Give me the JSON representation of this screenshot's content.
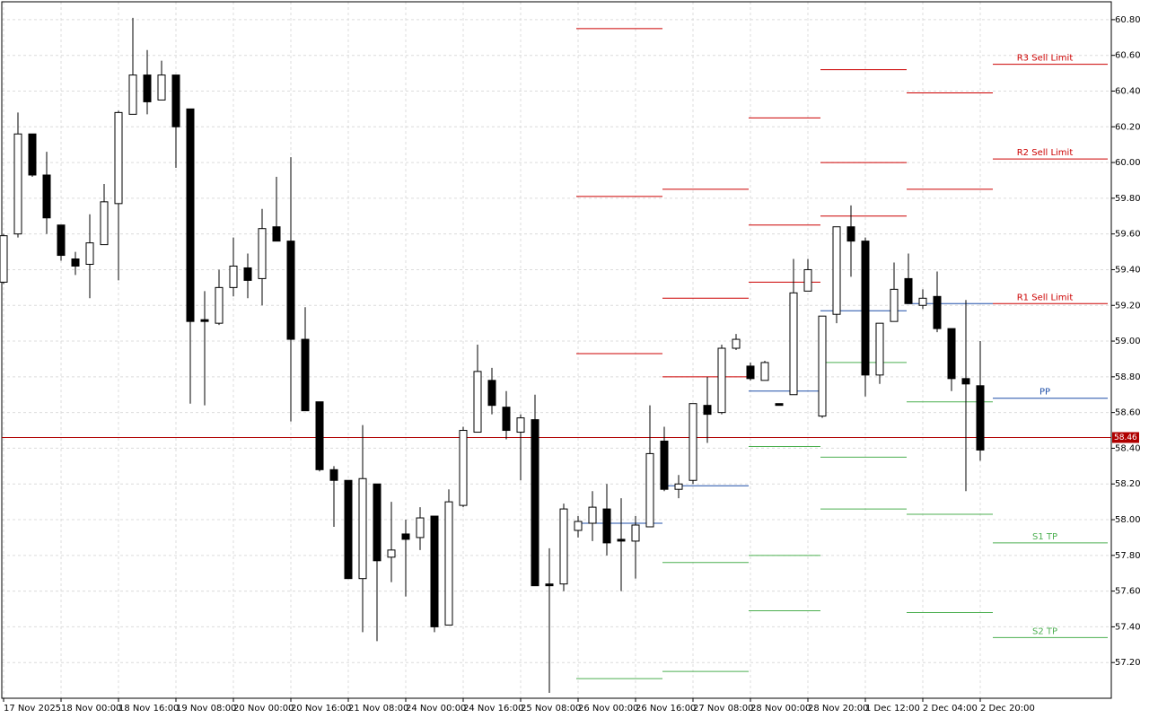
{
  "chart_data": {
    "type": "candlestick",
    "categories": [
      "17 Nov 2025",
      null,
      null,
      null,
      "18 Nov 00:00",
      null,
      null,
      null,
      "18 Nov 16:00",
      null,
      null,
      null,
      "19 Nov 08:00",
      null,
      null,
      null,
      "20 Nov 00:00",
      null,
      null,
      null,
      "20 Nov 16:00",
      null,
      null,
      null,
      "21 Nov 08:00",
      null,
      null,
      null,
      "24 Nov 00:00",
      null,
      null,
      null,
      "24 Nov 16:00",
      null,
      null,
      null,
      "25 Nov 08:00",
      null,
      null,
      null,
      "26 Nov 00:00",
      null,
      null,
      null,
      "26 Nov 16:00",
      null,
      null,
      null,
      "27 Nov 08:00",
      null,
      null,
      null,
      "28 Nov 00:00",
      null,
      null,
      null,
      "28 Nov 20:00",
      null,
      null,
      null,
      "1 Dec 12:00",
      null,
      null,
      null,
      "2 Dec 04:00",
      null,
      null,
      null,
      "2 Dec 20:00"
    ],
    "open": [
      59.33,
      59.6,
      60.16,
      59.93,
      59.65,
      59.46,
      59.43,
      59.54,
      59.77,
      60.27,
      60.49,
      60.35,
      60.49,
      60.3,
      59.12,
      59.1,
      59.3,
      59.41,
      59.35,
      59.64,
      59.56,
      59.01,
      58.66,
      58.28,
      58.22,
      57.67,
      58.2,
      57.79,
      57.92,
      57.9,
      58.02,
      57.41,
      58.08,
      58.49,
      58.78,
      58.63,
      58.49,
      58.56,
      57.64,
      57.64,
      57.94,
      57.98,
      58.06,
      57.89,
      57.88,
      57.96,
      58.44,
      58.17,
      58.22,
      58.64,
      58.6,
      58.96,
      58.86,
      58.78,
      58.65,
      58.7,
      59.28,
      58.58,
      59.15,
      59.64,
      59.56,
      58.81,
      59.11,
      59.35,
      59.2,
      59.25,
      59.07,
      58.79,
      58.75
    ],
    "high": [
      59.6,
      60.28,
      60.16,
      60.06,
      59.65,
      59.5,
      59.71,
      59.88,
      60.29,
      60.81,
      60.63,
      60.57,
      60.49,
      60.3,
      59.28,
      59.4,
      59.58,
      59.49,
      59.74,
      59.92,
      60.03,
      59.19,
      58.66,
      58.3,
      58.22,
      58.53,
      58.2,
      58.1,
      58.0,
      58.07,
      58.02,
      58.17,
      58.52,
      58.98,
      58.85,
      58.72,
      58.59,
      58.7,
      57.84,
      58.09,
      58.02,
      58.16,
      58.2,
      58.12,
      58.02,
      58.64,
      58.52,
      58.25,
      58.65,
      58.8,
      58.98,
      59.04,
      58.88,
      58.89,
      58.65,
      59.46,
      59.46,
      59.14,
      59.64,
      59.76,
      59.58,
      59.1,
      59.44,
      59.49,
      59.29,
      59.39,
      59.07,
      59.23,
      59.0
    ],
    "low": [
      59.32,
      59.58,
      59.92,
      59.6,
      59.45,
      59.37,
      59.24,
      59.54,
      59.34,
      60.27,
      60.27,
      60.35,
      59.97,
      58.65,
      58.64,
      59.09,
      59.25,
      59.24,
      59.2,
      59.56,
      58.55,
      58.61,
      58.27,
      57.96,
      57.67,
      57.37,
      57.32,
      57.65,
      57.57,
      57.83,
      57.37,
      57.41,
      58.07,
      58.49,
      58.59,
      58.45,
      58.22,
      57.63,
      57.03,
      57.6,
      57.9,
      57.88,
      57.8,
      57.6,
      57.67,
      57.96,
      58.16,
      58.12,
      58.2,
      58.43,
      58.59,
      58.95,
      58.78,
      58.78,
      58.64,
      58.7,
      59.28,
      58.57,
      59.1,
      59.36,
      58.69,
      58.76,
      59.11,
      59.21,
      59.18,
      59.05,
      58.72,
      58.16,
      58.33
    ],
    "close": [
      59.59,
      60.16,
      59.93,
      59.69,
      59.48,
      59.42,
      59.55,
      59.78,
      60.28,
      60.49,
      60.34,
      60.49,
      60.2,
      59.11,
      59.11,
      59.3,
      59.42,
      59.34,
      59.63,
      59.56,
      59.01,
      58.61,
      58.28,
      58.22,
      57.67,
      58.23,
      57.77,
      57.83,
      57.89,
      58.01,
      57.4,
      58.1,
      58.5,
      58.83,
      58.64,
      58.5,
      58.57,
      57.63,
      57.63,
      58.06,
      57.99,
      58.07,
      57.87,
      57.88,
      57.97,
      58.37,
      58.17,
      58.2,
      58.65,
      58.59,
      58.96,
      59.01,
      58.79,
      58.88,
      58.64,
      59.27,
      59.4,
      59.14,
      59.64,
      59.56,
      58.81,
      59.1,
      59.29,
      59.21,
      59.24,
      59.07,
      58.79,
      58.76,
      58.39
    ],
    "ylim": [
      57.0,
      60.9
    ],
    "yticks": [
      {
        "value": 57.2,
        "label": "57.20"
      },
      {
        "value": 57.4,
        "label": "57.40"
      },
      {
        "value": 57.6,
        "label": "57.60"
      },
      {
        "value": 57.8,
        "label": "57.80"
      },
      {
        "value": 58.0,
        "label": "58.00"
      },
      {
        "value": 58.2,
        "label": "58.20"
      },
      {
        "value": 58.4,
        "label": "58.40"
      },
      {
        "value": 58.6,
        "label": "58.60"
      },
      {
        "value": 58.8,
        "label": "58.80"
      },
      {
        "value": 59.0,
        "label": "59.00"
      },
      {
        "value": 59.2,
        "label": "59.20"
      },
      {
        "value": 59.4,
        "label": "59.40"
      },
      {
        "value": 59.6,
        "label": "59.60"
      },
      {
        "value": 59.8,
        "label": "59.80"
      },
      {
        "value": 60.0,
        "label": "60.00"
      },
      {
        "value": 60.2,
        "label": "60.20"
      },
      {
        "value": 60.4,
        "label": "60.40"
      },
      {
        "value": 60.6,
        "label": "60.60"
      },
      {
        "value": 60.8,
        "label": "60.80"
      }
    ],
    "grid": true,
    "current_price": {
      "value": 58.46,
      "label": "58.46"
    },
    "levels": [
      {
        "start": 40,
        "end": 46,
        "value": 60.75,
        "color": "#cc0000"
      },
      {
        "start": 40,
        "end": 46,
        "value": 59.81,
        "color": "#cc0000"
      },
      {
        "start": 40,
        "end": 46,
        "value": 58.93,
        "color": "#cc0000"
      },
      {
        "start": 40,
        "end": 46,
        "value": 57.98,
        "color": "#1f4fa8"
      },
      {
        "start": 40,
        "end": 46,
        "value": 57.11,
        "color": "#4caf50"
      },
      {
        "start": 46,
        "end": 52,
        "value": 59.85,
        "color": "#cc0000"
      },
      {
        "start": 46,
        "end": 52,
        "value": 59.24,
        "color": "#cc0000"
      },
      {
        "start": 46,
        "end": 52,
        "value": 58.8,
        "color": "#cc0000"
      },
      {
        "start": 46,
        "end": 52,
        "value": 58.19,
        "color": "#1f4fa8"
      },
      {
        "start": 46,
        "end": 52,
        "value": 57.76,
        "color": "#4caf50"
      },
      {
        "start": 46,
        "end": 52,
        "value": 57.15,
        "color": "#4caf50"
      },
      {
        "start": 52,
        "end": 57,
        "value": 60.25,
        "color": "#cc0000"
      },
      {
        "start": 52,
        "end": 57,
        "value": 59.65,
        "color": "#cc0000"
      },
      {
        "start": 52,
        "end": 57,
        "value": 59.33,
        "color": "#cc0000"
      },
      {
        "start": 52,
        "end": 57,
        "value": 58.72,
        "color": "#1f4fa8"
      },
      {
        "start": 52,
        "end": 57,
        "value": 58.41,
        "color": "#4caf50"
      },
      {
        "start": 52,
        "end": 57,
        "value": 57.8,
        "color": "#4caf50"
      },
      {
        "start": 52,
        "end": 57,
        "value": 57.49,
        "color": "#4caf50"
      },
      {
        "start": 57,
        "end": 63,
        "value": 60.52,
        "color": "#cc0000"
      },
      {
        "start": 57,
        "end": 63,
        "value": 60.0,
        "color": "#cc0000"
      },
      {
        "start": 57,
        "end": 63,
        "value": 59.7,
        "color": "#cc0000"
      },
      {
        "start": 57,
        "end": 63,
        "value": 59.17,
        "color": "#1f4fa8"
      },
      {
        "start": 57,
        "end": 63,
        "value": 58.88,
        "color": "#4caf50"
      },
      {
        "start": 57,
        "end": 63,
        "value": 58.35,
        "color": "#4caf50"
      },
      {
        "start": 57,
        "end": 63,
        "value": 58.06,
        "color": "#4caf50"
      },
      {
        "start": 63,
        "end": 69,
        "value": 60.39,
        "color": "#cc0000"
      },
      {
        "start": 63,
        "end": 69,
        "value": 59.85,
        "color": "#cc0000"
      },
      {
        "start": 63,
        "end": 69,
        "value": 59.21,
        "color": "#1f4fa8"
      },
      {
        "start": 63,
        "end": 69,
        "value": 58.66,
        "color": "#4caf50"
      },
      {
        "start": 63,
        "end": 69,
        "value": 58.03,
        "color": "#4caf50"
      },
      {
        "start": 63,
        "end": 69,
        "value": 57.48,
        "color": "#4caf50"
      },
      {
        "start": 69,
        "end": 77,
        "value": 60.55,
        "color": "#cc0000",
        "label": "R3 Sell Limit"
      },
      {
        "start": 69,
        "end": 77,
        "value": 60.02,
        "color": "#cc0000",
        "label": "R2 Sell Limit"
      },
      {
        "start": 69,
        "end": 77,
        "value": 59.21,
        "color": "#cc0000",
        "label": "R1 Sell Limit"
      },
      {
        "start": 69,
        "end": 77,
        "value": 58.68,
        "color": "#1f4fa8",
        "label": "PP"
      },
      {
        "start": 69,
        "end": 77,
        "value": 57.87,
        "color": "#4caf50",
        "label": "S1 TP"
      },
      {
        "start": 69,
        "end": 77,
        "value": 57.34,
        "color": "#4caf50",
        "label": "S2 TP"
      }
    ]
  }
}
